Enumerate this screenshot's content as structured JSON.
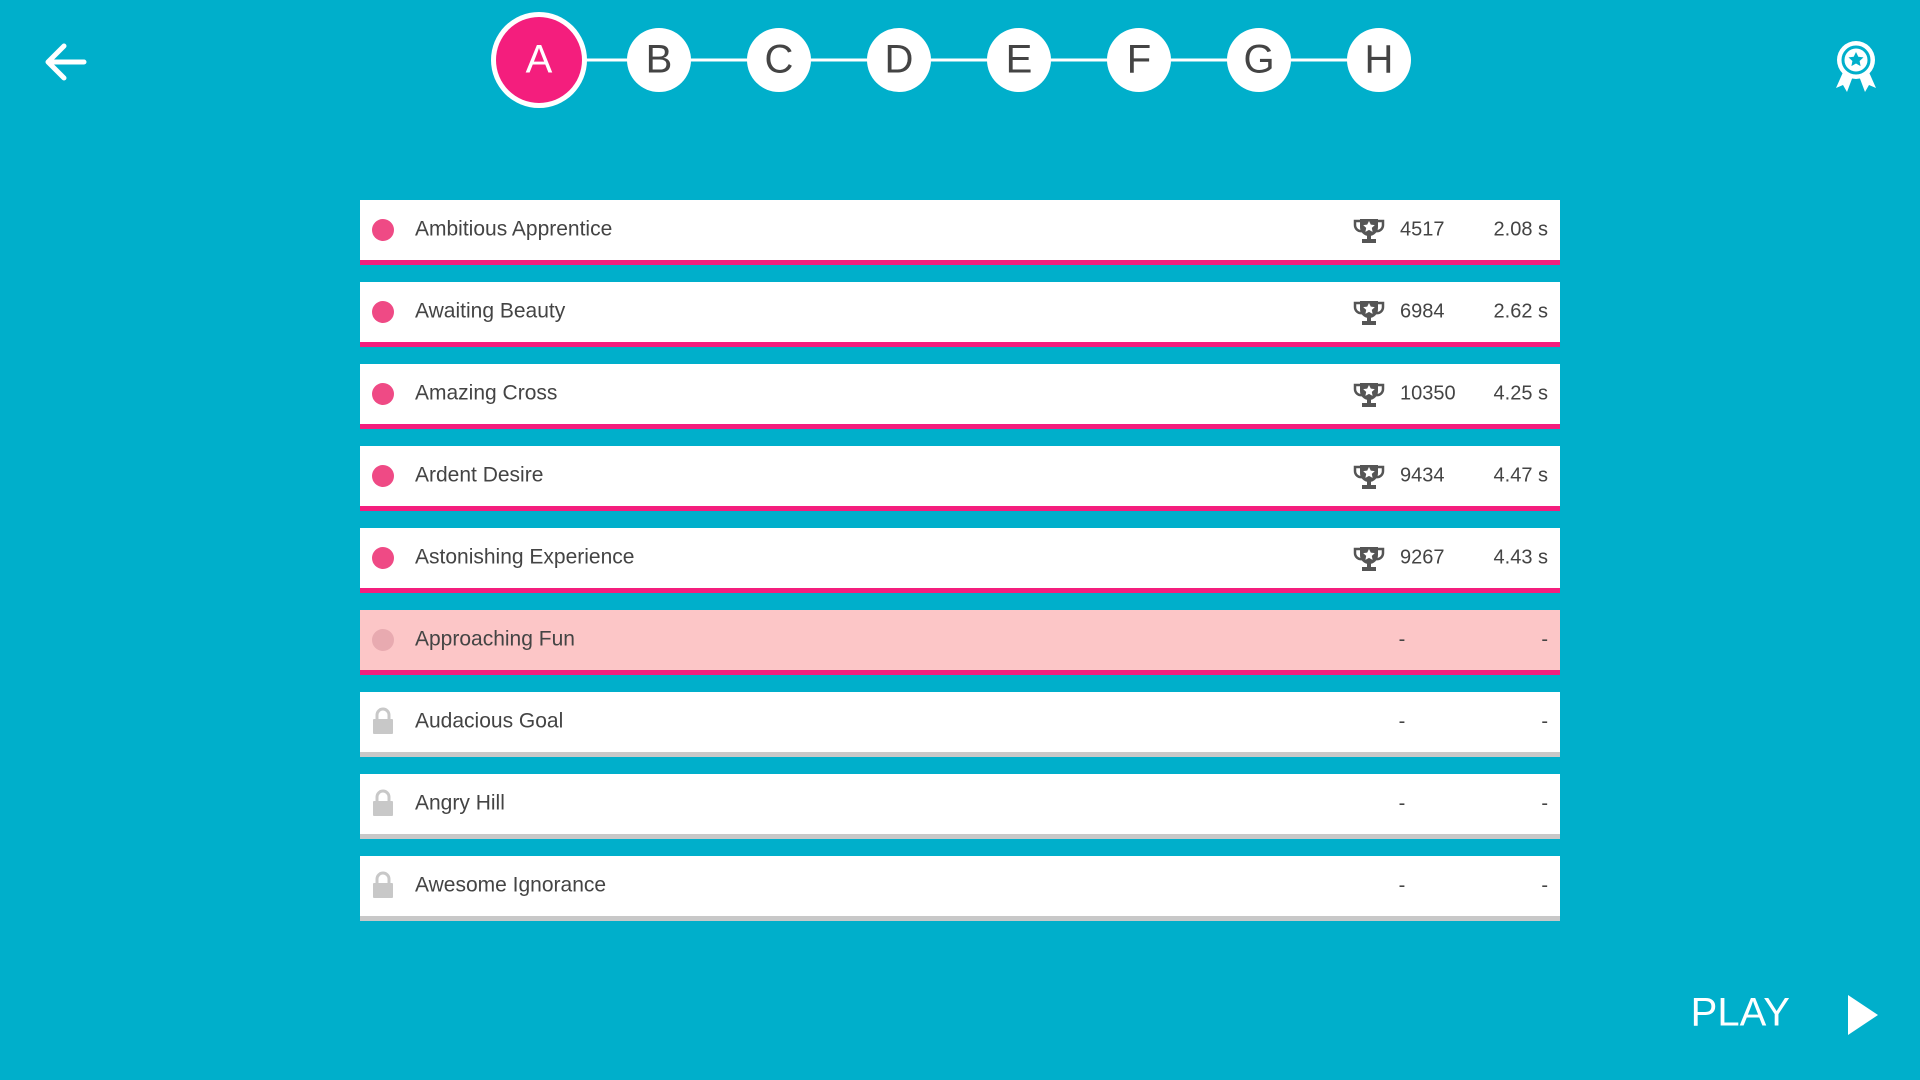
{
  "tabs": [
    {
      "label": "A",
      "selected": true
    },
    {
      "label": "B",
      "selected": false
    },
    {
      "label": "C",
      "selected": false
    },
    {
      "label": "D",
      "selected": false
    },
    {
      "label": "E",
      "selected": false
    },
    {
      "label": "F",
      "selected": false
    },
    {
      "label": "G",
      "selected": false
    },
    {
      "label": "H",
      "selected": false
    }
  ],
  "levels": [
    {
      "name": "Ambitious Apprentice",
      "score": 4517,
      "time": "2.08 s",
      "locked": false,
      "highlighted": false
    },
    {
      "name": "Awaiting Beauty",
      "score": 6984,
      "time": "2.62 s",
      "locked": false,
      "highlighted": false
    },
    {
      "name": "Amazing Cross",
      "score": 10350,
      "time": "4.25 s",
      "locked": false,
      "highlighted": false
    },
    {
      "name": "Ardent Desire",
      "score": 9434,
      "time": "4.47 s",
      "locked": false,
      "highlighted": false
    },
    {
      "name": "Astonishing Experience",
      "score": 9267,
      "time": "4.43 s",
      "locked": false,
      "highlighted": false
    },
    {
      "name": "Approaching Fun",
      "score": "-",
      "time": "-",
      "locked": false,
      "highlighted": true
    },
    {
      "name": "Audacious Goal",
      "score": "-",
      "time": "-",
      "locked": true,
      "highlighted": false
    },
    {
      "name": "Angry Hill",
      "score": "-",
      "time": "-",
      "locked": true,
      "highlighted": false
    },
    {
      "name": "Awesome Ignorance",
      "score": "-",
      "time": "-",
      "locked": true,
      "highlighted": false
    }
  ],
  "play_button": "PLAY"
}
